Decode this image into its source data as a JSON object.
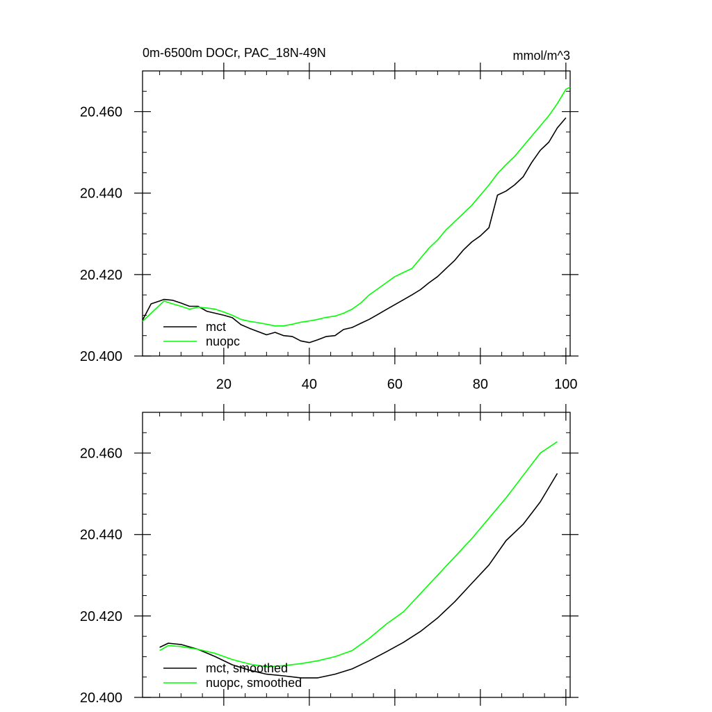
{
  "chart_data": [
    {
      "type": "line",
      "title": "0m-6500m DOCr, PAC_18N-49N",
      "units": "mmol/m^3",
      "xlim": [
        1,
        101
      ],
      "ylim": [
        20.4,
        20.47
      ],
      "x_ticks": [
        20,
        40,
        60,
        80,
        100
      ],
      "x_tick_labels": [
        "20",
        "40",
        "60",
        "80",
        "100"
      ],
      "y_ticks": [
        20.4,
        20.42,
        20.44,
        20.46
      ],
      "y_tick_labels": [
        "20.400",
        "20.420",
        "20.440",
        "20.460"
      ],
      "grid": false,
      "legend": "bottom-left",
      "series": [
        {
          "name": "mct",
          "color": "#000000",
          "points": [
            [
              1,
              20.4088
            ],
            [
              3,
              20.4128
            ],
            [
              5,
              20.4135
            ],
            [
              6,
              20.4139
            ],
            [
              8,
              20.4137
            ],
            [
              10,
              20.413
            ],
            [
              12,
              20.4122
            ],
            [
              14,
              20.4122
            ],
            [
              16,
              20.411
            ],
            [
              18,
              20.4105
            ],
            [
              20,
              20.41
            ],
            [
              22,
              20.4094
            ],
            [
              24,
              20.4077
            ],
            [
              26,
              20.4068
            ],
            [
              28,
              20.406
            ],
            [
              30,
              20.4052
            ],
            [
              32,
              20.4058
            ],
            [
              34,
              20.405
            ],
            [
              36,
              20.4048
            ],
            [
              38,
              20.4037
            ],
            [
              40,
              20.4033
            ],
            [
              42,
              20.404
            ],
            [
              44,
              20.4048
            ],
            [
              46,
              20.405
            ],
            [
              48,
              20.4065
            ],
            [
              50,
              20.407
            ],
            [
              52,
              20.408
            ],
            [
              54,
              20.409
            ],
            [
              56,
              20.4102
            ],
            [
              58,
              20.4114
            ],
            [
              60,
              20.4126
            ],
            [
              62,
              20.4138
            ],
            [
              64,
              20.415
            ],
            [
              66,
              20.4163
            ],
            [
              68,
              20.418
            ],
            [
              70,
              20.4195
            ],
            [
              72,
              20.4215
            ],
            [
              74,
              20.4235
            ],
            [
              76,
              20.426
            ],
            [
              78,
              20.428
            ],
            [
              80,
              20.4295
            ],
            [
              82,
              20.4315
            ],
            [
              84,
              20.4395
            ],
            [
              86,
              20.4405
            ],
            [
              88,
              20.442
            ],
            [
              90,
              20.444
            ],
            [
              92,
              20.4475
            ],
            [
              94,
              20.4505
            ],
            [
              96,
              20.4525
            ],
            [
              98,
              20.456
            ],
            [
              100,
              20.4585
            ]
          ]
        },
        {
          "name": "nuopc",
          "color": "#00ff00",
          "points": [
            [
              1,
              20.4085
            ],
            [
              3,
              20.4105
            ],
            [
              5,
              20.4125
            ],
            [
              6,
              20.4135
            ],
            [
              8,
              20.4128
            ],
            [
              10,
              20.4122
            ],
            [
              12,
              20.4115
            ],
            [
              14,
              20.412
            ],
            [
              16,
              20.4118
            ],
            [
              18,
              20.4115
            ],
            [
              20,
              20.4108
            ],
            [
              22,
              20.41
            ],
            [
              24,
              20.409
            ],
            [
              26,
              20.4085
            ],
            [
              28,
              20.4082
            ],
            [
              30,
              20.4078
            ],
            [
              32,
              20.4074
            ],
            [
              34,
              20.4074
            ],
            [
              36,
              20.4078
            ],
            [
              38,
              20.4083
            ],
            [
              40,
              20.4086
            ],
            [
              42,
              20.409
            ],
            [
              44,
              20.4095
            ],
            [
              46,
              20.4098
            ],
            [
              48,
              20.4105
            ],
            [
              50,
              20.4115
            ],
            [
              52,
              20.413
            ],
            [
              54,
              20.415
            ],
            [
              56,
              20.4165
            ],
            [
              58,
              20.418
            ],
            [
              60,
              20.4195
            ],
            [
              62,
              20.4205
            ],
            [
              64,
              20.4215
            ],
            [
              66,
              20.424
            ],
            [
              68,
              20.4265
            ],
            [
              70,
              20.4285
            ],
            [
              72,
              20.431
            ],
            [
              74,
              20.433
            ],
            [
              76,
              20.435
            ],
            [
              78,
              20.437
            ],
            [
              80,
              20.4395
            ],
            [
              82,
              20.442
            ],
            [
              84,
              20.4448
            ],
            [
              86,
              20.447
            ],
            [
              88,
              20.449
            ],
            [
              90,
              20.4515
            ],
            [
              92,
              20.454
            ],
            [
              94,
              20.4565
            ],
            [
              96,
              20.459
            ],
            [
              98,
              20.462
            ],
            [
              100,
              20.4655
            ],
            [
              101,
              20.466
            ]
          ]
        }
      ]
    },
    {
      "type": "line",
      "title": "",
      "xlim": [
        1,
        101
      ],
      "ylim": [
        20.4,
        20.47
      ],
      "x_ticks": [
        20,
        40,
        60,
        80,
        100
      ],
      "y_ticks": [
        20.4,
        20.42,
        20.44,
        20.46
      ],
      "y_tick_labels": [
        "20.400",
        "20.420",
        "20.440",
        "20.460"
      ],
      "grid": false,
      "legend": "bottom-left",
      "series": [
        {
          "name": "mct, smoothed",
          "color": "#000000",
          "points": [
            [
              5,
              20.4123
            ],
            [
              7,
              20.4133
            ],
            [
              10,
              20.413
            ],
            [
              14,
              20.4118
            ],
            [
              18,
              20.41
            ],
            [
              22,
              20.408
            ],
            [
              26,
              20.4067
            ],
            [
              30,
              20.4057
            ],
            [
              34,
              20.4053
            ],
            [
              38,
              20.4048
            ],
            [
              42,
              20.4048
            ],
            [
              46,
              20.4057
            ],
            [
              50,
              20.407
            ],
            [
              54,
              20.409
            ],
            [
              58,
              20.4112
            ],
            [
              62,
              20.4135
            ],
            [
              66,
              20.4162
            ],
            [
              70,
              20.4195
            ],
            [
              74,
              20.4235
            ],
            [
              78,
              20.428
            ],
            [
              82,
              20.4325
            ],
            [
              86,
              20.4385
            ],
            [
              90,
              20.4425
            ],
            [
              94,
              20.448
            ],
            [
              98,
              20.455
            ]
          ]
        },
        {
          "name": "nuopc, smoothed",
          "color": "#00ff00",
          "points": [
            [
              5,
              20.4115
            ],
            [
              7,
              20.4127
            ],
            [
              10,
              20.4125
            ],
            [
              14,
              20.4118
            ],
            [
              18,
              20.4108
            ],
            [
              22,
              20.4093
            ],
            [
              26,
              20.4082
            ],
            [
              30,
              20.4075
            ],
            [
              34,
              20.4078
            ],
            [
              38,
              20.4083
            ],
            [
              42,
              20.409
            ],
            [
              46,
              20.41
            ],
            [
              50,
              20.4115
            ],
            [
              54,
              20.4145
            ],
            [
              58,
              20.418
            ],
            [
              62,
              20.421
            ],
            [
              66,
              20.4255
            ],
            [
              70,
              20.43
            ],
            [
              74,
              20.4345
            ],
            [
              78,
              20.439
            ],
            [
              82,
              20.444
            ],
            [
              86,
              20.449
            ],
            [
              90,
              20.4545
            ],
            [
              94,
              20.46
            ],
            [
              98,
              20.4628
            ]
          ]
        }
      ]
    }
  ]
}
